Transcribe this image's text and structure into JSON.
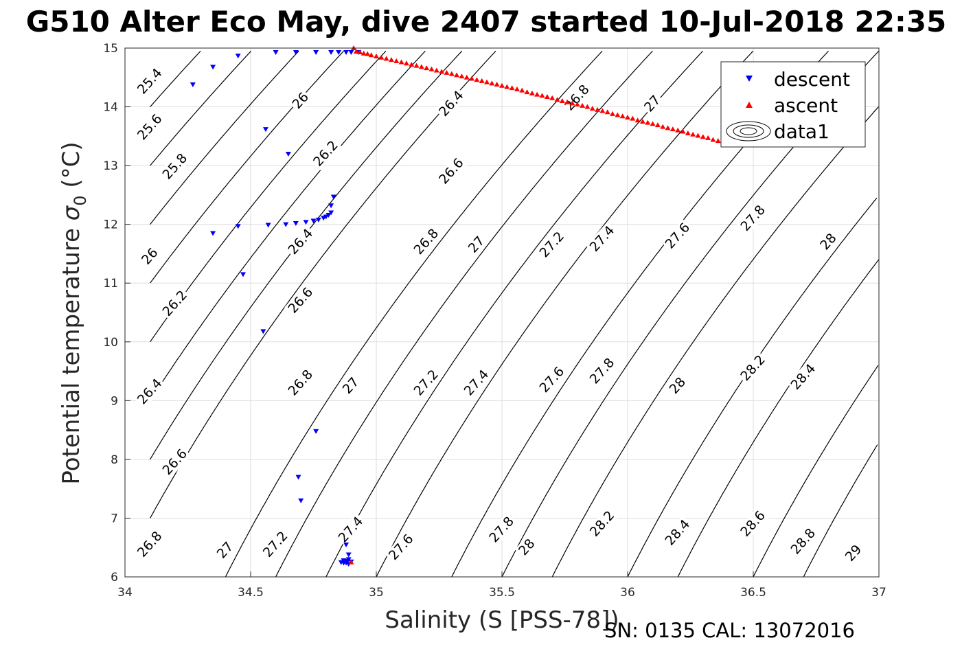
{
  "figure": {
    "title": "G510 Alter Eco May, dive 2407 started 10-Jul-2018 22:35",
    "caption": "SN: 0135  CAL: 13072016"
  },
  "chart_data": {
    "type": "scatter",
    "title": "G510 Alter Eco May, dive 2407 started 10-Jul-2018 22:35",
    "xlabel": "Salinity (S [PSS-78])",
    "ylabel": "Potential temperature σ0 (°C)",
    "xlim": [
      34,
      37
    ],
    "ylim": [
      6,
      15
    ],
    "xticks": [
      34,
      34.5,
      35,
      35.5,
      36,
      36.5,
      37
    ],
    "yticks": [
      6,
      7,
      8,
      9,
      10,
      11,
      12,
      13,
      14,
      15
    ],
    "grid": true,
    "legend_position": "top-right",
    "legend": [
      "descent",
      "ascent",
      "data1"
    ],
    "colors": {
      "descent": "#0000ff",
      "ascent": "#ff0000",
      "contours": "#000000",
      "grid": "#dddddd"
    },
    "contour_levels": [
      25.4,
      25.6,
      25.8,
      26,
      26.2,
      26.4,
      26.6,
      26.8,
      27,
      27.2,
      27.4,
      27.6,
      27.8,
      28,
      28.2,
      28.4,
      28.6,
      28.8,
      29
    ],
    "contour_lines": [
      {
        "level": 25.4,
        "S0": 34.1,
        "T0": 14,
        "labels": [
          {
            "S": 34.1,
            "T": 14.43
          }
        ]
      },
      {
        "level": 25.6,
        "S0": 34.1,
        "T0": 13,
        "labels": [
          {
            "S": 34.1,
            "T": 13.65
          }
        ]
      },
      {
        "level": 25.8,
        "S0": 34.1,
        "T0": 12,
        "labels": [
          {
            "S": 34.2,
            "T": 12.98
          }
        ]
      },
      {
        "level": 26,
        "S0": 34.1,
        "T0": 11,
        "labels": [
          {
            "S": 34.1,
            "T": 11.45
          },
          {
            "S": 34.7,
            "T": 14.1
          }
        ]
      },
      {
        "level": 26.2,
        "S0": 34.1,
        "T0": 10,
        "labels": [
          {
            "S": 34.2,
            "T": 10.65
          },
          {
            "S": 34.8,
            "T": 13.2
          }
        ]
      },
      {
        "level": 26.4,
        "S0": 34.1,
        "T0": 9,
        "labels": [
          {
            "S": 34.1,
            "T": 9.15
          },
          {
            "S": 34.7,
            "T": 11.7
          },
          {
            "S": 35.3,
            "T": 14.05
          }
        ]
      },
      {
        "level": 26.6,
        "S0": 34.1,
        "T0": 8,
        "labels": [
          {
            "S": 34.2,
            "T": 7.95
          },
          {
            "S": 34.7,
            "T": 10.7
          },
          {
            "S": 35.3,
            "T": 12.9
          }
        ]
      },
      {
        "level": 26.8,
        "S0": 34.1,
        "T0": 7,
        "labels": [
          {
            "S": 34.1,
            "T": 6.55
          },
          {
            "S": 34.7,
            "T": 9.3
          },
          {
            "S": 35.2,
            "T": 11.7
          },
          {
            "S": 35.8,
            "T": 14.15
          }
        ]
      },
      {
        "level": 27,
        "S0": 34.4,
        "T0": 6,
        "labels": [
          {
            "S": 34.4,
            "T": 6.45
          },
          {
            "S": 34.9,
            "T": 9.25
          },
          {
            "S": 35.4,
            "T": 11.65
          },
          {
            "S": 36.1,
            "T": 14.05
          }
        ]
      },
      {
        "level": 27.2,
        "S0": 34.6,
        "T0": 6,
        "labels": [
          {
            "S": 34.6,
            "T": 6.55
          },
          {
            "S": 35.2,
            "T": 9.3
          },
          {
            "S": 35.7,
            "T": 11.65
          }
        ]
      },
      {
        "level": 27.4,
        "S0": 34.8,
        "T0": 6,
        "labels": [
          {
            "S": 34.9,
            "T": 6.8
          },
          {
            "S": 35.4,
            "T": 9.3
          },
          {
            "S": 35.9,
            "T": 11.75
          }
        ]
      },
      {
        "level": 27.6,
        "S0": 35.0,
        "T0": 6,
        "labels": [
          {
            "S": 35.1,
            "T": 6.5
          },
          {
            "S": 35.7,
            "T": 9.35
          },
          {
            "S": 36.2,
            "T": 11.8
          }
        ]
      },
      {
        "level": 27.8,
        "S0": 35.3,
        "T0": 6,
        "labels": [
          {
            "S": 35.5,
            "T": 6.8
          },
          {
            "S": 35.9,
            "T": 9.5
          },
          {
            "S": 36.5,
            "T": 12.1
          }
        ]
      },
      {
        "level": 28,
        "S0": 35.5,
        "T0": 6,
        "labels": [
          {
            "S": 35.6,
            "T": 6.5
          },
          {
            "S": 36.2,
            "T": 9.25
          },
          {
            "S": 36.8,
            "T": 11.7
          }
        ]
      },
      {
        "level": 28.2,
        "S0": 35.7,
        "T0": 6,
        "labels": [
          {
            "S": 35.9,
            "T": 6.9
          },
          {
            "S": 36.5,
            "T": 9.55
          }
        ]
      },
      {
        "level": 28.4,
        "S0": 36.0,
        "T0": 6,
        "labels": [
          {
            "S": 36.2,
            "T": 6.75
          },
          {
            "S": 36.7,
            "T": 9.4
          }
        ]
      },
      {
        "level": 28.6,
        "S0": 36.2,
        "T0": 6,
        "labels": [
          {
            "S": 36.5,
            "T": 6.9
          }
        ]
      },
      {
        "level": 28.8,
        "S0": 36.5,
        "T0": 6,
        "labels": [
          {
            "S": 36.7,
            "T": 6.6
          }
        ]
      },
      {
        "level": 29,
        "S0": 36.7,
        "T0": 6,
        "labels": [
          {
            "S": 36.9,
            "T": 6.4
          }
        ]
      }
    ],
    "series": [
      {
        "name": "descent",
        "marker": "triangle-down",
        "points": [
          [
            34.27,
            14.38
          ],
          [
            34.35,
            14.68
          ],
          [
            34.45,
            14.87
          ],
          [
            34.6,
            14.93
          ],
          [
            34.68,
            14.93
          ],
          [
            34.76,
            14.93
          ],
          [
            34.82,
            14.93
          ],
          [
            34.85,
            14.93
          ],
          [
            34.88,
            14.93
          ],
          [
            34.9,
            14.93
          ],
          [
            34.93,
            14.93
          ],
          [
            34.56,
            13.62
          ],
          [
            34.65,
            13.2
          ],
          [
            34.83,
            12.47
          ],
          [
            34.82,
            12.32
          ],
          [
            34.82,
            12.2
          ],
          [
            34.81,
            12.16
          ],
          [
            34.8,
            12.13
          ],
          [
            34.79,
            12.11
          ],
          [
            34.77,
            12.08
          ],
          [
            34.75,
            12.06
          ],
          [
            34.72,
            12.04
          ],
          [
            34.68,
            12.02
          ],
          [
            34.64,
            12.0
          ],
          [
            34.57,
            11.99
          ],
          [
            34.45,
            11.97
          ],
          [
            34.35,
            11.85
          ],
          [
            34.47,
            11.15
          ],
          [
            34.55,
            10.18
          ],
          [
            34.76,
            8.48
          ],
          [
            34.69,
            7.7
          ],
          [
            34.7,
            7.3
          ],
          [
            34.88,
            6.55
          ],
          [
            34.89,
            6.38
          ],
          [
            34.87,
            6.28
          ],
          [
            34.88,
            6.24
          ],
          [
            34.89,
            6.22
          ],
          [
            34.87,
            6.24
          ],
          [
            34.86,
            6.25
          ],
          [
            34.9,
            6.26
          ],
          [
            34.88,
            6.27
          ],
          [
            34.89,
            6.3
          ]
        ]
      },
      {
        "name": "ascent",
        "marker": "triangle-up",
        "points": [
          [
            34.91,
            15.0
          ],
          [
            34.92,
            14.94
          ],
          [
            34.935,
            14.93
          ],
          [
            34.95,
            14.91
          ],
          [
            34.965,
            14.9
          ],
          [
            34.98,
            14.88
          ],
          [
            35.0,
            14.86
          ],
          [
            35.02,
            14.84
          ],
          [
            35.04,
            14.82
          ],
          [
            35.06,
            14.8
          ],
          [
            35.08,
            14.78
          ],
          [
            35.1,
            14.76
          ],
          [
            35.12,
            14.74
          ],
          [
            35.14,
            14.72
          ],
          [
            35.16,
            14.7
          ],
          [
            35.18,
            14.68
          ],
          [
            35.2,
            14.66
          ],
          [
            35.22,
            14.64
          ],
          [
            35.24,
            14.62
          ],
          [
            35.26,
            14.6
          ],
          [
            35.28,
            14.58
          ],
          [
            35.3,
            14.56
          ],
          [
            35.32,
            14.54
          ],
          [
            35.34,
            14.52
          ],
          [
            35.36,
            14.5
          ],
          [
            35.38,
            14.48
          ],
          [
            35.4,
            14.46
          ],
          [
            35.42,
            14.44
          ],
          [
            35.44,
            14.42
          ],
          [
            35.46,
            14.4
          ],
          [
            35.48,
            14.38
          ],
          [
            35.5,
            14.36
          ],
          [
            35.52,
            14.34
          ],
          [
            35.54,
            14.32
          ],
          [
            35.56,
            14.3
          ],
          [
            35.58,
            14.28
          ],
          [
            35.6,
            14.25
          ],
          [
            35.62,
            14.23
          ],
          [
            35.64,
            14.21
          ],
          [
            35.66,
            14.19
          ],
          [
            35.68,
            14.17
          ],
          [
            35.7,
            14.15
          ],
          [
            35.72,
            14.12
          ],
          [
            35.74,
            14.1
          ],
          [
            35.76,
            14.08
          ],
          [
            35.78,
            14.06
          ],
          [
            35.8,
            14.04
          ],
          [
            35.82,
            14.02
          ],
          [
            35.84,
            14.0
          ],
          [
            35.86,
            13.97
          ],
          [
            35.88,
            13.95
          ],
          [
            35.9,
            13.93
          ],
          [
            35.92,
            13.91
          ],
          [
            35.94,
            13.88
          ],
          [
            35.96,
            13.86
          ],
          [
            35.98,
            13.84
          ],
          [
            36.0,
            13.82
          ],
          [
            36.02,
            13.8
          ],
          [
            36.04,
            13.77
          ],
          [
            36.06,
            13.75
          ],
          [
            36.08,
            13.73
          ],
          [
            36.1,
            13.71
          ],
          [
            36.12,
            13.69
          ],
          [
            36.14,
            13.66
          ],
          [
            36.16,
            13.64
          ],
          [
            36.18,
            13.62
          ],
          [
            36.2,
            13.6
          ],
          [
            36.22,
            13.58
          ],
          [
            36.24,
            13.55
          ],
          [
            36.26,
            13.53
          ],
          [
            36.28,
            13.51
          ],
          [
            36.3,
            13.49
          ],
          [
            36.32,
            13.47
          ],
          [
            36.34,
            13.44
          ],
          [
            36.36,
            13.42
          ],
          [
            36.38,
            13.4
          ],
          [
            36.4,
            13.38
          ],
          [
            34.9,
            6.25
          ]
        ]
      }
    ]
  }
}
